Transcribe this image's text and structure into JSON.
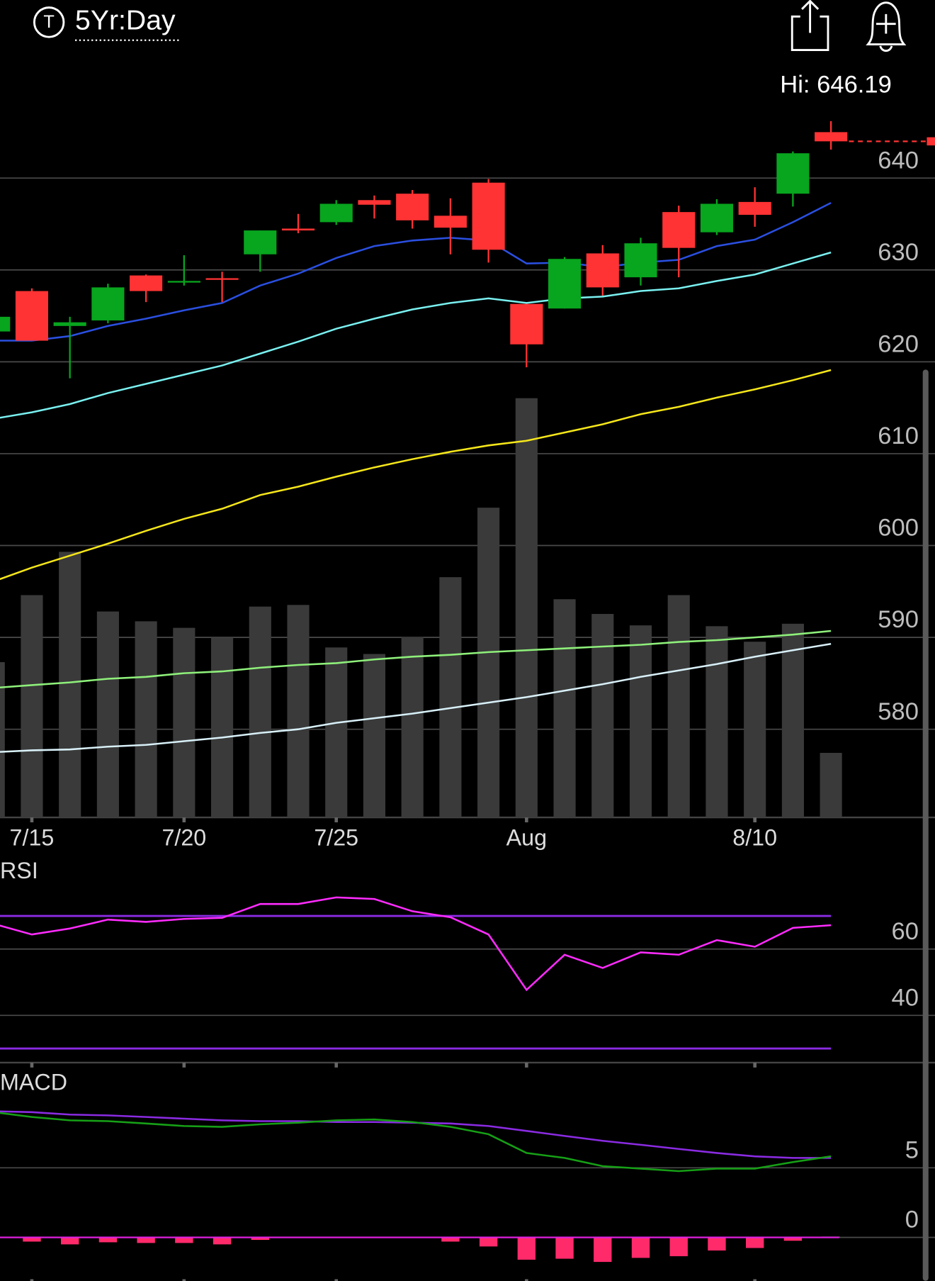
{
  "header": {
    "icon_letter": "T",
    "range": "5Yr:Day",
    "hi_label": "Hi: 646.19"
  },
  "chart_data": [
    {
      "type": "candlestick",
      "categories": [
        null,
        "7/15",
        null,
        null,
        null,
        "7/20",
        null,
        null,
        null,
        "7/25",
        null,
        null,
        null,
        null,
        "Aug",
        null,
        null,
        null,
        null,
        null,
        "8/10",
        null,
        null
      ],
      "candles": {
        "open": [
          623.3,
          627.7,
          623.9,
          624.5,
          629.4,
          628.7,
          629.1,
          631.7,
          634.5,
          635.2,
          637.6,
          638.3,
          635.9,
          639.5,
          626.3,
          625.8,
          631.8,
          629.2,
          636.3,
          634.1,
          637.4,
          638.3,
          645.0
        ],
        "high": [
          625.0,
          628.0,
          624.9,
          628.5,
          629.5,
          631.6,
          629.8,
          634.3,
          636.1,
          637.6,
          638.1,
          638.7,
          637.8,
          639.9,
          626.3,
          631.4,
          632.7,
          633.5,
          637.0,
          637.7,
          639.0,
          642.9,
          646.2
        ],
        "low": [
          623.2,
          622.3,
          618.2,
          624.2,
          626.5,
          628.3,
          626.5,
          629.8,
          634.0,
          634.9,
          635.6,
          634.5,
          631.7,
          630.8,
          619.4,
          625.8,
          627.2,
          628.3,
          629.2,
          633.8,
          634.7,
          636.9,
          643.1
        ],
        "close": [
          624.9,
          622.3,
          624.3,
          628.1,
          627.7,
          628.8,
          629.0,
          634.3,
          634.3,
          637.2,
          637.1,
          635.4,
          634.6,
          632.2,
          621.9,
          631.2,
          628.1,
          632.9,
          632.4,
          637.2,
          636.0,
          642.7,
          644.0
        ]
      },
      "up_color": "#08a51e",
      "down_color": "#ff3333",
      "lines": [
        {
          "color": "#2a4fe0",
          "values": [
            622.3,
            622.3,
            622.8,
            623.9,
            624.7,
            625.6,
            626.4,
            628.3,
            629.6,
            631.3,
            632.6,
            633.2,
            633.5,
            633.2,
            630.7,
            630.8,
            630.3,
            630.8,
            631.1,
            632.6,
            633.3,
            635.2,
            637.3
          ]
        },
        {
          "color": "#7af0f0",
          "values": [
            613.8,
            614.5,
            615.4,
            616.6,
            617.6,
            618.6,
            619.6,
            620.9,
            622.2,
            623.6,
            624.7,
            625.7,
            626.4,
            626.9,
            626.4,
            626.9,
            627.1,
            627.7,
            628.0,
            628.8,
            629.5,
            630.7,
            631.9
          ]
        },
        {
          "color": "#f5e61a",
          "values": [
            596.1,
            597.6,
            598.9,
            600.2,
            601.6,
            602.9,
            604.0,
            605.5,
            606.4,
            607.5,
            608.5,
            609.4,
            610.2,
            610.9,
            611.4,
            612.3,
            613.2,
            614.3,
            615.1,
            616.1,
            617.0,
            618.0,
            619.1
          ]
        },
        {
          "color": "#8ef07a",
          "values": [
            584.5,
            584.8,
            585.1,
            585.5,
            585.7,
            586.1,
            586.3,
            586.7,
            587.0,
            587.2,
            587.6,
            587.9,
            588.1,
            588.4,
            588.6,
            588.8,
            589.0,
            589.2,
            589.5,
            589.7,
            590.0,
            590.3,
            590.7
          ]
        },
        {
          "color": "#d8f0f8",
          "values": [
            577.5,
            577.7,
            577.8,
            578.1,
            578.3,
            578.7,
            579.1,
            579.6,
            580.0,
            580.7,
            581.2,
            581.7,
            582.3,
            582.9,
            583.5,
            584.2,
            584.9,
            585.7,
            586.4,
            587.1,
            587.9,
            588.6,
            589.3
          ]
        }
      ],
      "volume": {
        "color": "#3a3a3a",
        "lim": [
          0,
          560
        ],
        "values": [
          190,
          272,
          325,
          252,
          240,
          232,
          220,
          258,
          260,
          208,
          200,
          221,
          294,
          379,
          513,
          267,
          249,
          235,
          272,
          234,
          215,
          237,
          79
        ]
      },
      "ylim": [
        570.4,
        647.8
      ],
      "yticks": [
        580,
        590,
        600,
        610,
        620,
        630,
        640
      ],
      "grid": true,
      "last_price_line": true
    },
    {
      "type": "line",
      "title": "RSI",
      "series": [
        {
          "color": "#ff2cff",
          "values": [
            67.6,
            64.4,
            66.2,
            68.9,
            68.2,
            69.1,
            69.4,
            73.6,
            73.6,
            75.6,
            75.1,
            71.4,
            69.6,
            64.4,
            47.7,
            58.3,
            54.3,
            59.0,
            58.3,
            62.7,
            60.7,
            66.4,
            67.2
          ]
        }
      ],
      "levels": [
        70,
        30
      ],
      "level_color": "#8a2be2",
      "ylim": [
        26,
        79
      ],
      "yticks": [
        40,
        60
      ],
      "grid": true
    },
    {
      "type": "macd",
      "title": "MACD",
      "series": [
        {
          "color": "#8a2be2",
          "values": [
            9.06,
            9.0,
            8.82,
            8.76,
            8.65,
            8.53,
            8.41,
            8.35,
            8.35,
            8.29,
            8.29,
            8.24,
            8.18,
            8.0,
            7.65,
            7.29,
            6.94,
            6.65,
            6.35,
            6.06,
            5.82,
            5.71,
            5.71
          ]
        },
        {
          "color": "#16a016",
          "values": [
            9.0,
            8.65,
            8.41,
            8.35,
            8.18,
            8.0,
            7.94,
            8.12,
            8.24,
            8.41,
            8.47,
            8.29,
            7.94,
            7.41,
            6.06,
            5.71,
            5.12,
            4.94,
            4.76,
            4.94,
            4.94,
            5.41,
            5.82
          ]
        }
      ],
      "histogram": {
        "up_color": "#16a016",
        "down_color": "#ff2a6a",
        "values": [
          0,
          -0.3,
          -0.5,
          -0.35,
          -0.4,
          -0.4,
          -0.5,
          -0.18,
          0,
          0,
          0,
          0,
          -0.3,
          -0.65,
          -1.6,
          -1.53,
          -1.76,
          -1.47,
          -1.35,
          -0.94,
          -0.76,
          -0.24,
          0.06
        ]
      },
      "zero_line_color": "#e020e0",
      "ylim": [
        -3,
        10.5
      ],
      "yticks": [
        0,
        5
      ],
      "grid": true
    }
  ]
}
